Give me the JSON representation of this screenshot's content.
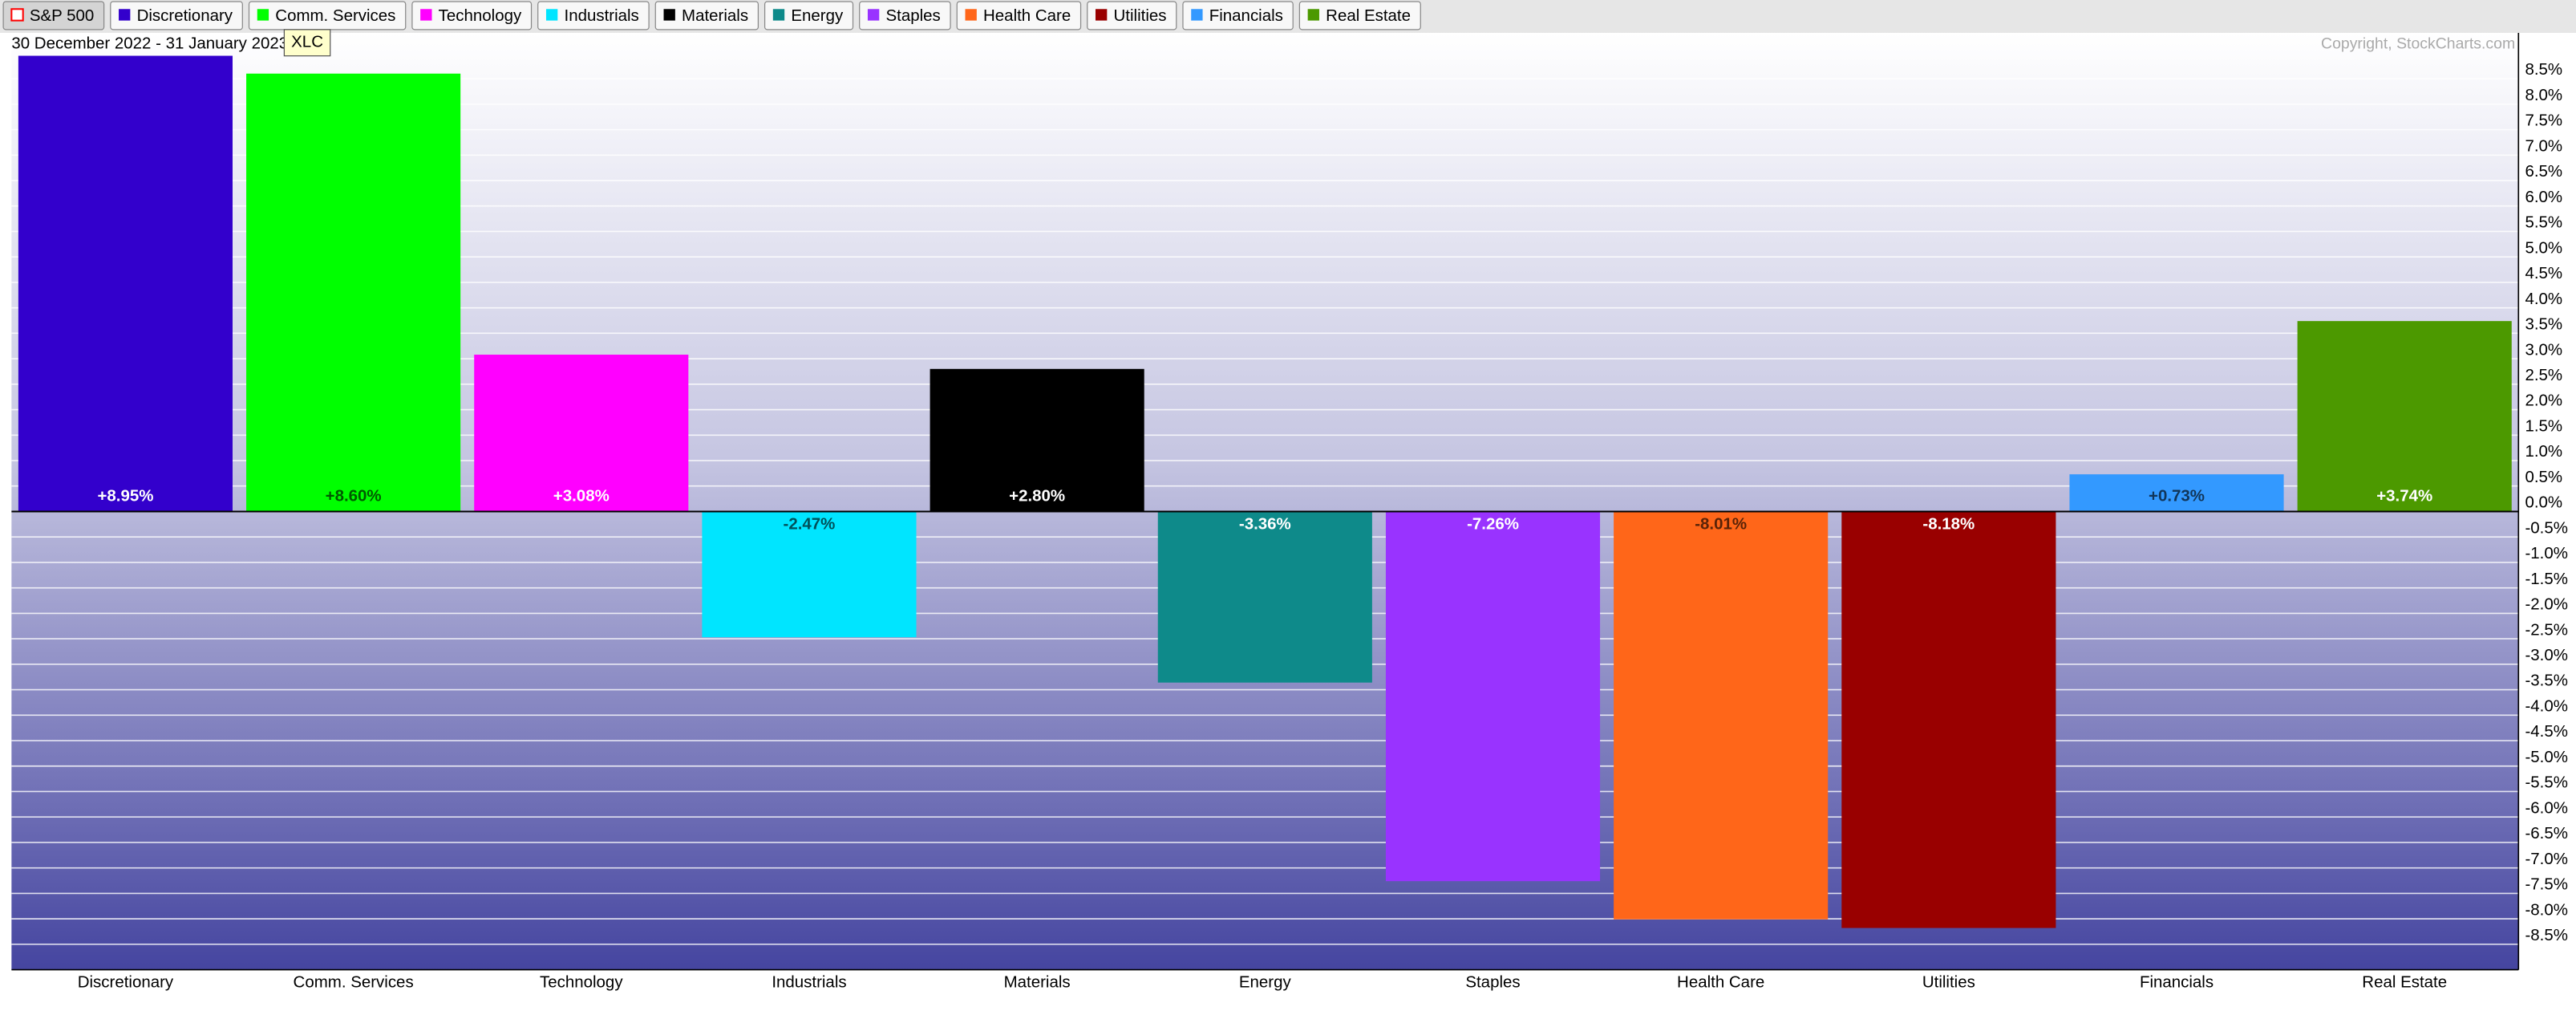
{
  "chart_data": {
    "type": "bar",
    "legend_buttons": [
      {
        "label": "S&P 500",
        "color": "#ff0000"
      },
      {
        "label": "Discretionary",
        "color": "#3300cc"
      },
      {
        "label": "Comm. Services",
        "color": "#00ff00"
      },
      {
        "label": "Technology",
        "color": "#ff00ff"
      },
      {
        "label": "Industrials",
        "color": "#00e5ff"
      },
      {
        "label": "Materials",
        "color": "#000000"
      },
      {
        "label": "Energy",
        "color": "#0e8a8a"
      },
      {
        "label": "Staples",
        "color": "#9933ff"
      },
      {
        "label": "Health Care",
        "color": "#ff6619"
      },
      {
        "label": "Utilities",
        "color": "#990000"
      },
      {
        "label": "Financials",
        "color": "#3399ff"
      },
      {
        "label": "Real Estate",
        "color": "#4c9900"
      }
    ],
    "date_range": "30 December 2022 - 31 January 2023",
    "tooltip": "XLC",
    "copyright": "Copyright, StockCharts.com",
    "categories": [
      "Discretionary",
      "Comm. Services",
      "Technology",
      "Industrials",
      "Materials",
      "Energy",
      "Staples",
      "Health Care",
      "Utilities",
      "Financials",
      "Real Estate"
    ],
    "values": [
      8.95,
      8.6,
      3.08,
      -2.47,
      2.8,
      -3.36,
      -7.26,
      -8.01,
      -8.18,
      0.73,
      3.74
    ],
    "value_labels": [
      "+8.95%",
      "+8.60%",
      "+3.08%",
      "-2.47%",
      "+2.80%",
      "-3.36%",
      "-7.26%",
      "-8.01%",
      "-8.18%",
      "+0.73%",
      "+3.74%"
    ],
    "colors": [
      "#3300cc",
      "#00ff00",
      "#ff00ff",
      "#00e5ff",
      "#000000",
      "#0e8a8a",
      "#9933ff",
      "#ff6619",
      "#990000",
      "#3399ff",
      "#4c9900"
    ],
    "ylim": [
      -9,
      9.4
    ],
    "yticks": [
      {
        "value": 8.5,
        "label": "8.5%"
      },
      {
        "value": 8,
        "label": "8.0%"
      },
      {
        "value": 7.5,
        "label": "7.5%"
      },
      {
        "value": 7,
        "label": "7.0%"
      },
      {
        "value": 6.5,
        "label": "6.5%"
      },
      {
        "value": 6,
        "label": "6.0%"
      },
      {
        "value": 5.5,
        "label": "5.5%"
      },
      {
        "value": 5,
        "label": "5.0%"
      },
      {
        "value": 4.5,
        "label": "4.5%"
      },
      {
        "value": 4,
        "label": "4.0%"
      },
      {
        "value": 3.5,
        "label": "3.5%"
      },
      {
        "value": 3,
        "label": "3.0%"
      },
      {
        "value": 2.5,
        "label": "2.5%"
      },
      {
        "value": 2,
        "label": "2.0%"
      },
      {
        "value": 1.5,
        "label": "1.5%"
      },
      {
        "value": 1,
        "label": "1.0%"
      },
      {
        "value": 0.5,
        "label": "0.5%"
      },
      {
        "value": 0,
        "label": "0.0%"
      },
      {
        "value": -0.5,
        "label": "-0.5%"
      },
      {
        "value": -1,
        "label": "-1.0%"
      },
      {
        "value": -1.5,
        "label": "-1.5%"
      },
      {
        "value": -2,
        "label": "-2.0%"
      },
      {
        "value": -2.5,
        "label": "-2.5%"
      },
      {
        "value": -3,
        "label": "-3.0%"
      },
      {
        "value": -3.5,
        "label": "-3.5%"
      },
      {
        "value": -4,
        "label": "-4.0%"
      },
      {
        "value": -4.5,
        "label": "-4.5%"
      },
      {
        "value": -5,
        "label": "-5.0%"
      },
      {
        "value": -5.5,
        "label": "-5.5%"
      },
      {
        "value": -6,
        "label": "-6.0%"
      },
      {
        "value": -6.5,
        "label": "-6.5%"
      },
      {
        "value": -7,
        "label": "-7.0%"
      },
      {
        "value": -7.5,
        "label": "-7.5%"
      },
      {
        "value": -8,
        "label": "-8.0%"
      },
      {
        "value": -8.5,
        "label": "-8.5%"
      }
    ],
    "grid": true
  }
}
